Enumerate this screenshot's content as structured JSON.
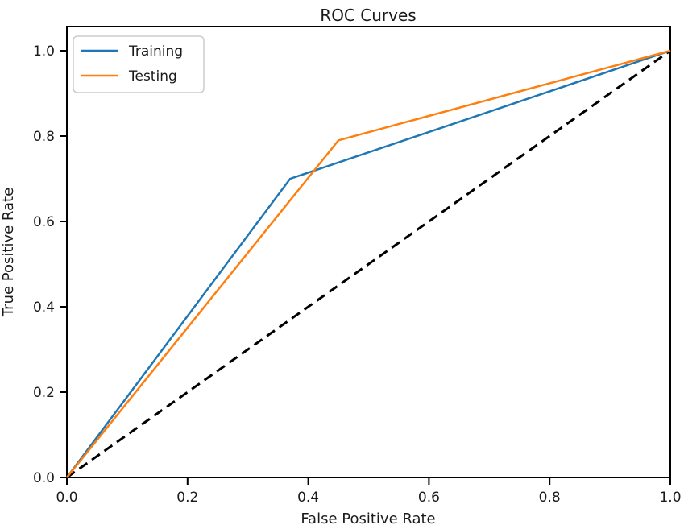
{
  "figure": {
    "background": "#ffffff"
  },
  "chart_data": {
    "type": "line",
    "title": "ROC Curves",
    "xlabel": "False Positive Rate",
    "ylabel": "True Positive Rate",
    "xlim": [
      0.0,
      1.0
    ],
    "ylim": [
      0.0,
      1.0
    ],
    "x_ticks": [
      "0.0",
      "0.2",
      "0.4",
      "0.6",
      "0.8",
      "1.0"
    ],
    "y_ticks": [
      "0.0",
      "0.2",
      "0.4",
      "0.6",
      "0.8",
      "1.0"
    ],
    "x_tick_values": [
      0,
      0.2,
      0.4,
      0.6,
      0.8,
      1.0
    ],
    "y_tick_values": [
      0,
      0.2,
      0.4,
      0.6,
      0.8,
      1.0
    ],
    "grid": false,
    "legend_position": "upper-left",
    "series": [
      {
        "name": "Training",
        "color": "#1f77b4",
        "style": "solid",
        "points": [
          [
            0.0,
            0.0
          ],
          [
            0.37,
            0.7
          ],
          [
            1.0,
            1.0
          ]
        ]
      },
      {
        "name": "Testing",
        "color": "#ff7f0e",
        "style": "solid",
        "points": [
          [
            0.0,
            0.0
          ],
          [
            0.45,
            0.79
          ],
          [
            1.0,
            1.0
          ]
        ]
      }
    ],
    "reference_line": {
      "name": "chance-diagonal",
      "color": "#000000",
      "style": "dashed",
      "points": [
        [
          0.0,
          0.0
        ],
        [
          1.0,
          1.0
        ]
      ]
    },
    "spine_color": "#000000"
  }
}
